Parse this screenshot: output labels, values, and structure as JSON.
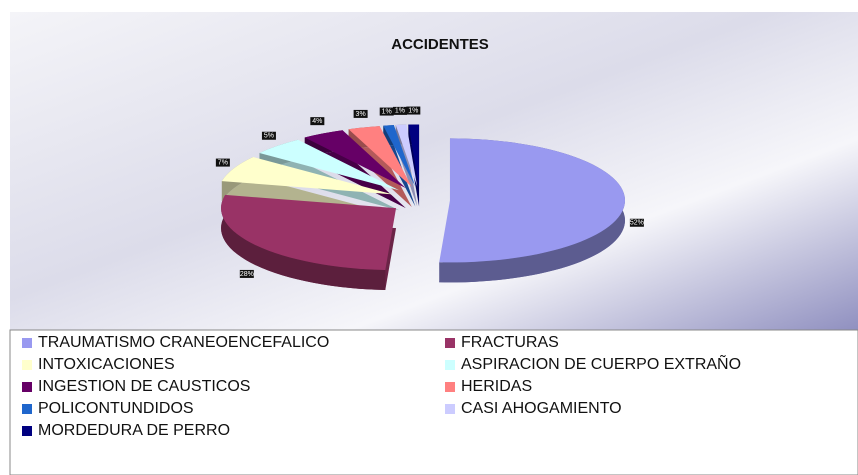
{
  "chart_data": {
    "type": "pie",
    "title": "ACCIDENTES",
    "categories": [
      "TRAUMATISMO CRANEOENCEFALICO",
      "FRACTURAS",
      "INTOXICACIONES",
      "ASPIRACION DE CUERPO EXTRAÑO",
      "INGESTION DE CAUSTICOS",
      "HERIDAS",
      "POLICONTUNDIDOS",
      "CASI AHOGAMIENTO",
      "MORDEDURA DE PERRO"
    ],
    "values": [
      52,
      28,
      7,
      5,
      4,
      3,
      1,
      1,
      1
    ],
    "value_labels": [
      "52%",
      "28%",
      "7%",
      "5%",
      "4%",
      "3%",
      "1%",
      "1%",
      "1%"
    ],
    "colors": [
      "#9999f0",
      "#993366",
      "#ffffcc",
      "#ccffff",
      "#660066",
      "#ff8080",
      "#1f66cc",
      "#ccccff",
      "#000080"
    ],
    "legend": "bottom"
  }
}
